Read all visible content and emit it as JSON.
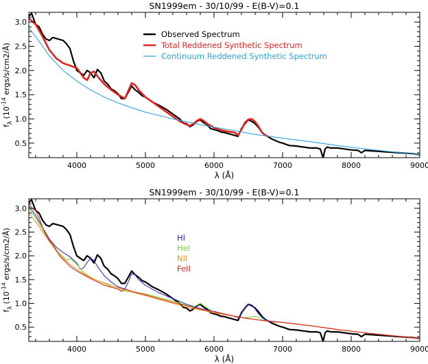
{
  "chart_data": [
    {
      "type": "line",
      "title": "SN1999em - 30/10/99 - E(B-V)=0.1",
      "xlabel": "λ (Å)",
      "ylabel": "f_λ (10^-14 ergs/s/cm2/Å)",
      "ylabel_main": "f",
      "ylabel_sub": "λ",
      "ylabel_paren": "(10",
      "ylabel_exp": "-14",
      "ylabel_units": " ergs/s/cm2/Å)",
      "xlim": [
        3300,
        9000
      ],
      "ylim": [
        0.2,
        3.2
      ],
      "xticks": [
        "4000",
        "5000",
        "6000",
        "7000",
        "8000",
        "9000"
      ],
      "yticks": [
        "0.5",
        "1.0",
        "1.5",
        "2.0",
        "2.5",
        "3.0"
      ],
      "grid": false,
      "legend_position": "top-right",
      "series": [
        {
          "name": "Observed Spectrum",
          "color": "#000000",
          "x": [
            3300,
            3340,
            3400,
            3450,
            3500,
            3550,
            3600,
            3650,
            3700,
            3750,
            3800,
            3850,
            3900,
            3950,
            4000,
            4050,
            4100,
            4150,
            4200,
            4250,
            4300,
            4350,
            4400,
            4450,
            4500,
            4550,
            4600,
            4650,
            4700,
            4750,
            4800,
            4850,
            4900,
            4950,
            5000,
            5100,
            5200,
            5300,
            5400,
            5500,
            5550,
            5600,
            5650,
            5700,
            5750,
            5800,
            5850,
            5900,
            5950,
            6000,
            6050,
            6100,
            6150,
            6200,
            6250,
            6300,
            6350,
            6400,
            6450,
            6500,
            6550,
            6600,
            6650,
            6700,
            6750,
            6800,
            6850,
            6900,
            6950,
            7000,
            7100,
            7200,
            7300,
            7400,
            7500,
            7550,
            7590,
            7620,
            7650,
            7700,
            7800,
            7900,
            8000,
            8100,
            8150,
            8200,
            8300,
            8400,
            8500,
            8600,
            8700,
            8800,
            8900,
            9000
          ],
          "y": [
            3.12,
            3.18,
            2.95,
            2.9,
            2.75,
            2.65,
            2.62,
            2.68,
            2.66,
            2.64,
            2.62,
            2.55,
            2.45,
            2.2,
            2.0,
            1.95,
            1.9,
            2.0,
            1.95,
            1.85,
            2.02,
            1.95,
            1.78,
            1.72,
            1.62,
            1.58,
            1.52,
            1.42,
            1.42,
            1.55,
            1.68,
            1.6,
            1.55,
            1.48,
            1.45,
            1.35,
            1.28,
            1.2,
            1.1,
            1.0,
            0.92,
            0.9,
            0.84,
            0.88,
            0.95,
            0.98,
            0.92,
            0.88,
            0.8,
            0.78,
            0.76,
            0.73,
            0.72,
            0.7,
            0.68,
            0.66,
            0.64,
            0.8,
            0.9,
            0.98,
            0.95,
            0.9,
            0.82,
            0.72,
            0.66,
            0.62,
            0.58,
            0.55,
            0.52,
            0.5,
            0.45,
            0.44,
            0.42,
            0.4,
            0.4,
            0.38,
            0.2,
            0.38,
            0.42,
            0.4,
            0.4,
            0.38,
            0.36,
            0.35,
            0.3,
            0.35,
            0.34,
            0.33,
            0.32,
            0.31,
            0.3,
            0.29,
            0.28,
            0.26
          ]
        },
        {
          "name": "Total Reddened Synthetic Spectrum",
          "color": "#e8201c",
          "x": [
            3300,
            3400,
            3500,
            3600,
            3700,
            3800,
            3900,
            4000,
            4100,
            4150,
            4200,
            4250,
            4300,
            4400,
            4500,
            4600,
            4700,
            4750,
            4800,
            4850,
            4900,
            5000,
            5100,
            5200,
            5300,
            5400,
            5500,
            5600,
            5650,
            5700,
            5750,
            5800,
            5850,
            5900,
            6000,
            6100,
            6200,
            6300,
            6350,
            6400,
            6450,
            6500,
            6550,
            6600,
            6650,
            6700,
            6750,
            6800
          ],
          "y": [
            3.08,
            2.95,
            2.7,
            2.42,
            2.25,
            2.15,
            2.1,
            2.05,
            1.85,
            1.8,
            1.95,
            1.98,
            1.88,
            1.72,
            1.6,
            1.5,
            1.42,
            1.58,
            1.74,
            1.7,
            1.6,
            1.45,
            1.35,
            1.25,
            1.15,
            1.05,
            0.95,
            0.88,
            0.86,
            0.9,
            0.96,
            1.0,
            0.96,
            0.9,
            0.82,
            0.77,
            0.74,
            0.72,
            0.66,
            0.78,
            0.92,
            0.99,
            1.0,
            0.94,
            0.84,
            0.72,
            0.66,
            0.63
          ]
        },
        {
          "name": "Continuum Reddened Synthetic Spectrum",
          "color": "#29a3de",
          "x": [
            3300,
            3400,
            3600,
            3800,
            4000,
            4200,
            4400,
            4600,
            4800,
            5000,
            5400,
            5800,
            6200,
            6600,
            7000,
            7400,
            7800,
            8200,
            8600,
            9000
          ],
          "y": [
            2.88,
            2.7,
            2.3,
            2.0,
            1.78,
            1.6,
            1.45,
            1.33,
            1.23,
            1.14,
            1.0,
            0.88,
            0.78,
            0.68,
            0.6,
            0.53,
            0.45,
            0.38,
            0.32,
            0.26
          ]
        }
      ]
    },
    {
      "type": "line",
      "title": "SN1999em - 30/10/99 - E(B-V)=0.1",
      "xlabel": "λ (Å)",
      "ylabel": "f_λ (10^-14 ergs/s/cm2/Å)",
      "ylabel_main": "f",
      "ylabel_sub": "λ",
      "ylabel_paren": "(10",
      "ylabel_exp": "-14",
      "ylabel_units": " ergs/s/cm2/Å)",
      "xlim": [
        3300,
        9000
      ],
      "ylim": [
        0.2,
        3.2
      ],
      "xticks": [
        "4000",
        "5000",
        "6000",
        "7000",
        "8000",
        "9000"
      ],
      "yticks": [
        "0.5",
        "1.0",
        "1.5",
        "2.0",
        "2.5",
        "3.0"
      ],
      "grid": false,
      "legend_position": "center",
      "series": [
        {
          "name": "",
          "color": "#000000",
          "x": [
            3300,
            3340,
            3400,
            3450,
            3500,
            3550,
            3600,
            3650,
            3700,
            3750,
            3800,
            3850,
            3900,
            3950,
            4000,
            4050,
            4100,
            4150,
            4200,
            4250,
            4300,
            4350,
            4400,
            4450,
            4500,
            4550,
            4600,
            4650,
            4700,
            4750,
            4800,
            4850,
            4900,
            4950,
            5000,
            5100,
            5200,
            5300,
            5400,
            5500,
            5550,
            5600,
            5650,
            5700,
            5750,
            5800,
            5850,
            5900,
            5950,
            6000,
            6050,
            6100,
            6150,
            6200,
            6250,
            6300,
            6350,
            6400,
            6450,
            6500,
            6550,
            6600,
            6650,
            6700,
            6750,
            6800,
            6850,
            6900,
            6950,
            7000,
            7100,
            7200,
            7300,
            7400,
            7500,
            7550,
            7590,
            7620,
            7650,
            7700,
            7800,
            7900,
            8000,
            8100,
            8150,
            8200,
            8300,
            8400,
            8500,
            8600,
            8700,
            8800,
            8900,
            9000
          ],
          "y": [
            3.12,
            3.18,
            2.95,
            2.9,
            2.75,
            2.65,
            2.62,
            2.68,
            2.66,
            2.64,
            2.62,
            2.55,
            2.45,
            2.2,
            2.0,
            1.95,
            1.9,
            2.0,
            1.95,
            1.85,
            2.02,
            1.95,
            1.78,
            1.72,
            1.62,
            1.58,
            1.52,
            1.42,
            1.42,
            1.55,
            1.68,
            1.6,
            1.55,
            1.48,
            1.45,
            1.35,
            1.28,
            1.2,
            1.1,
            1.0,
            0.92,
            0.9,
            0.84,
            0.88,
            0.95,
            0.98,
            0.92,
            0.88,
            0.8,
            0.78,
            0.76,
            0.73,
            0.72,
            0.7,
            0.68,
            0.66,
            0.64,
            0.8,
            0.9,
            0.98,
            0.95,
            0.9,
            0.82,
            0.72,
            0.66,
            0.62,
            0.58,
            0.55,
            0.52,
            0.5,
            0.45,
            0.44,
            0.42,
            0.4,
            0.4,
            0.38,
            0.2,
            0.38,
            0.42,
            0.4,
            0.4,
            0.38,
            0.36,
            0.35,
            0.3,
            0.35,
            0.34,
            0.33,
            0.32,
            0.31,
            0.3,
            0.29,
            0.28,
            0.26
          ]
        },
        {
          "name": "HI",
          "color": "#2b2bd6",
          "x": [
            3300,
            3400,
            3500,
            3600,
            3700,
            3800,
            3900,
            4000,
            4050,
            4100,
            4150,
            4200,
            4250,
            4300,
            4350,
            4400,
            4500,
            4600,
            4700,
            4750,
            4800,
            4850,
            4900,
            5000,
            5200,
            5400,
            5600,
            5800,
            6000,
            6200,
            6300,
            6350,
            6400,
            6450,
            6500,
            6550,
            6600,
            6650,
            6700,
            6750,
            6800,
            7000,
            7400,
            7800,
            8200,
            8600,
            9000
          ],
          "y": [
            3.05,
            2.85,
            2.6,
            2.35,
            2.18,
            2.07,
            1.98,
            1.85,
            1.72,
            1.75,
            1.86,
            1.95,
            1.9,
            1.78,
            1.68,
            1.58,
            1.45,
            1.35,
            1.3,
            1.45,
            1.62,
            1.6,
            1.5,
            1.38,
            1.22,
            1.1,
            0.98,
            0.89,
            0.83,
            0.76,
            0.72,
            0.7,
            0.78,
            0.9,
            0.98,
            0.97,
            0.88,
            0.78,
            0.7,
            0.66,
            0.63,
            0.6,
            0.53,
            0.45,
            0.38,
            0.32,
            0.26
          ]
        },
        {
          "name": "HeI",
          "color": "#73d92e",
          "x": [
            3300,
            3400,
            3500,
            3600,
            3700,
            3800,
            3850,
            3900,
            4000,
            4100,
            4200,
            4300,
            4400,
            4500,
            4600,
            4700,
            4800,
            4900,
            5000,
            5200,
            5400,
            5600,
            5700,
            5750,
            5800,
            5850,
            5900,
            6000,
            6200,
            6400,
            6500,
            6550,
            6600,
            6650,
            6700,
            6800,
            7000,
            7400,
            7800,
            8200,
            8600,
            9000
          ],
          "y": [
            3.0,
            2.8,
            2.55,
            2.32,
            2.12,
            1.98,
            1.9,
            1.95,
            1.82,
            1.65,
            1.55,
            1.48,
            1.42,
            1.35,
            1.3,
            1.26,
            1.24,
            1.22,
            1.2,
            1.12,
            1.05,
            0.96,
            0.92,
            0.96,
            1.0,
            0.95,
            0.9,
            0.82,
            0.76,
            0.7,
            0.7,
            0.72,
            0.73,
            0.7,
            0.66,
            0.62,
            0.6,
            0.53,
            0.45,
            0.38,
            0.32,
            0.26
          ]
        },
        {
          "name": "NII",
          "color": "#f09419",
          "x": [
            3300,
            3400,
            3500,
            3600,
            3700,
            3800,
            3900,
            4000,
            4100,
            4200,
            4300,
            4400,
            4500,
            4600,
            4700,
            4800,
            4900,
            5000,
            5200,
            5400,
            5600,
            5800,
            6000,
            6200,
            6400,
            6600,
            6800,
            7000,
            7400,
            7800,
            8200,
            8600,
            9000
          ],
          "y": [
            2.9,
            2.72,
            2.5,
            2.3,
            2.1,
            1.95,
            1.82,
            1.72,
            1.62,
            1.54,
            1.48,
            1.43,
            1.38,
            1.33,
            1.28,
            1.24,
            1.2,
            1.16,
            1.08,
            1.0,
            0.92,
            0.86,
            0.8,
            0.75,
            0.7,
            0.66,
            0.62,
            0.6,
            0.53,
            0.45,
            0.38,
            0.32,
            0.26
          ]
        },
        {
          "name": "FeII",
          "color": "#e0251d",
          "x": [
            3300,
            3350,
            3400,
            3450,
            3500,
            3550,
            3600,
            3650,
            3700,
            3750,
            3800,
            3850,
            3900,
            4000,
            4100,
            4200,
            4300,
            4400,
            4500,
            4600,
            4650,
            4700,
            4750,
            4800,
            4900,
            5000,
            5200,
            5400,
            5600,
            5800,
            6000,
            6200,
            6400,
            6600,
            6800,
            7000,
            7400,
            7800,
            8200,
            8600,
            9000
          ],
          "y": [
            3.1,
            3.0,
            2.95,
            2.8,
            2.6,
            2.45,
            2.32,
            2.25,
            2.12,
            2.0,
            1.92,
            1.85,
            1.78,
            1.68,
            1.6,
            1.52,
            1.45,
            1.38,
            1.34,
            1.3,
            1.25,
            1.3,
            1.28,
            1.25,
            1.22,
            1.18,
            1.1,
            1.02,
            0.95,
            0.88,
            0.82,
            0.76,
            0.7,
            0.66,
            0.62,
            0.6,
            0.53,
            0.45,
            0.38,
            0.32,
            0.26
          ]
        }
      ]
    }
  ]
}
